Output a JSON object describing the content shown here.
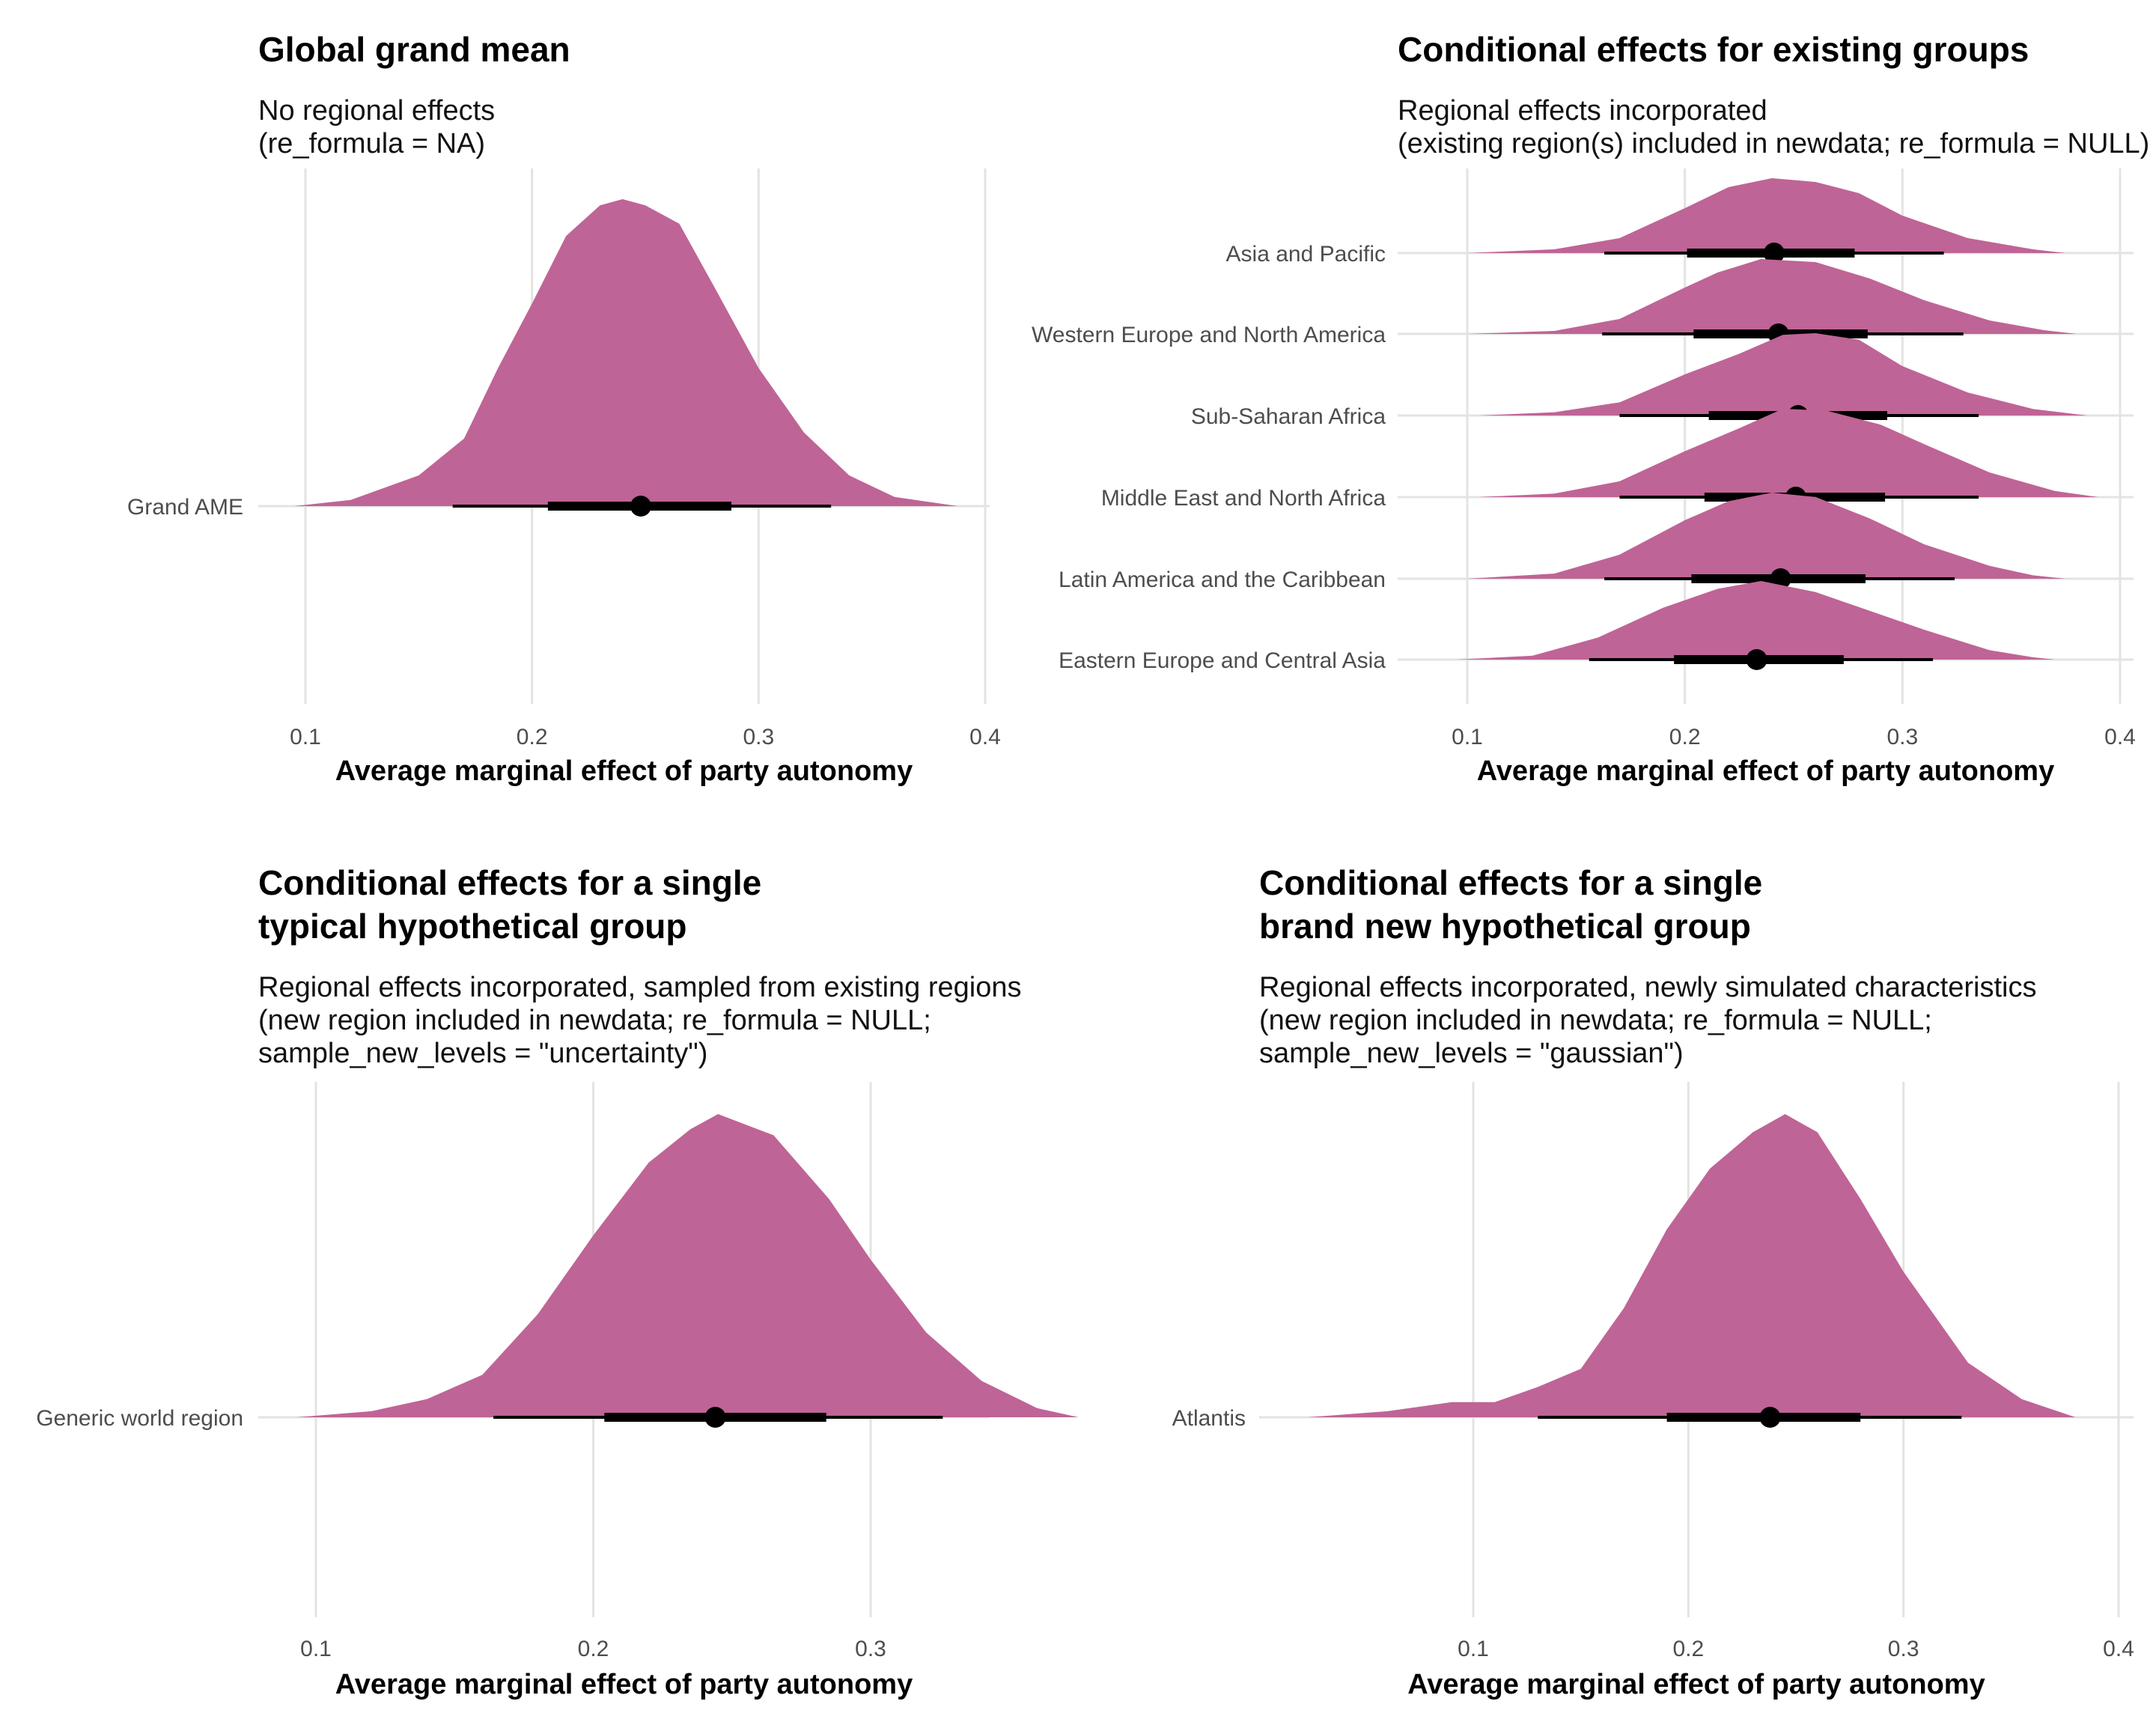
{
  "colors": {
    "density": "#bf6496",
    "grid": "#e3e3e3",
    "interval": "#000000"
  },
  "chart_data": [
    {
      "type": "halfeye",
      "title": [
        "Global grand mean"
      ],
      "subtitle": [
        "No regional effects",
        "(re_formula = NA)"
      ],
      "xlabel": "Average marginal effect of party autonomy",
      "xlim": [
        0.09,
        0.4
      ],
      "xticks": [
        0.1,
        0.2,
        0.3,
        0.4
      ],
      "xtick_labels": [
        "0.1",
        "0.2",
        "0.3",
        "0.4"
      ],
      "grid": true,
      "series": [
        {
          "label": "Grand AME",
          "median": 0.248,
          "interval_66": [
            0.207,
            0.288
          ],
          "interval_95": [
            0.165,
            0.332
          ],
          "density": [
            [
              0.095,
              0.0
            ],
            [
              0.12,
              0.02
            ],
            [
              0.15,
              0.1
            ],
            [
              0.17,
              0.22
            ],
            [
              0.185,
              0.45
            ],
            [
              0.2,
              0.66
            ],
            [
              0.215,
              0.88
            ],
            [
              0.23,
              0.98
            ],
            [
              0.24,
              1.0
            ],
            [
              0.25,
              0.98
            ],
            [
              0.265,
              0.92
            ],
            [
              0.28,
              0.72
            ],
            [
              0.3,
              0.45
            ],
            [
              0.32,
              0.24
            ],
            [
              0.34,
              0.1
            ],
            [
              0.36,
              0.03
            ],
            [
              0.388,
              0.0
            ]
          ]
        }
      ]
    },
    {
      "type": "halfeye",
      "title": [
        "Conditional effects for existing groups"
      ],
      "subtitle": [
        "Regional effects incorporated",
        "(existing region(s) included in newdata; re_formula = NULL)"
      ],
      "xlabel": "Average marginal effect of party autonomy",
      "xlim": [
        0.095,
        0.405
      ],
      "xticks": [
        0.1,
        0.2,
        0.3,
        0.4
      ],
      "xtick_labels": [
        "0.1",
        "0.2",
        "0.3",
        "0.4"
      ],
      "grid": true,
      "series": [
        {
          "label": "Asia and Pacific",
          "median": 0.241,
          "interval_66": [
            0.201,
            0.278
          ],
          "interval_95": [
            0.163,
            0.319
          ],
          "density": [
            [
              0.1,
              0.0
            ],
            [
              0.14,
              0.05
            ],
            [
              0.17,
              0.2
            ],
            [
              0.2,
              0.6
            ],
            [
              0.22,
              0.88
            ],
            [
              0.24,
              1.0
            ],
            [
              0.26,
              0.95
            ],
            [
              0.28,
              0.8
            ],
            [
              0.3,
              0.5
            ],
            [
              0.33,
              0.2
            ],
            [
              0.36,
              0.05
            ],
            [
              0.375,
              0.0
            ]
          ]
        },
        {
          "label": "Western Europe and North America",
          "median": 0.243,
          "interval_66": [
            0.204,
            0.284
          ],
          "interval_95": [
            0.162,
            0.328
          ],
          "density": [
            [
              0.1,
              0.0
            ],
            [
              0.14,
              0.04
            ],
            [
              0.17,
              0.2
            ],
            [
              0.2,
              0.62
            ],
            [
              0.215,
              0.82
            ],
            [
              0.235,
              1.0
            ],
            [
              0.26,
              0.96
            ],
            [
              0.285,
              0.74
            ],
            [
              0.31,
              0.45
            ],
            [
              0.34,
              0.18
            ],
            [
              0.365,
              0.05
            ],
            [
              0.38,
              0.0
            ]
          ]
        },
        {
          "label": "Sub-Saharan Africa",
          "median": 0.252,
          "interval_66": [
            0.211,
            0.293
          ],
          "interval_95": [
            0.17,
            0.335
          ],
          "density": [
            [
              0.105,
              0.0
            ],
            [
              0.14,
              0.04
            ],
            [
              0.17,
              0.16
            ],
            [
              0.2,
              0.5
            ],
            [
              0.225,
              0.75
            ],
            [
              0.245,
              0.98
            ],
            [
              0.26,
              1.0
            ],
            [
              0.28,
              0.92
            ],
            [
              0.3,
              0.6
            ],
            [
              0.33,
              0.28
            ],
            [
              0.36,
              0.08
            ],
            [
              0.385,
              0.0
            ]
          ]
        },
        {
          "label": "Middle East and North Africa",
          "median": 0.251,
          "interval_66": [
            0.209,
            0.292
          ],
          "interval_95": [
            0.17,
            0.335
          ],
          "density": [
            [
              0.105,
              0.0
            ],
            [
              0.14,
              0.04
            ],
            [
              0.17,
              0.18
            ],
            [
              0.2,
              0.52
            ],
            [
              0.225,
              0.78
            ],
            [
              0.245,
              1.0
            ],
            [
              0.265,
              0.98
            ],
            [
              0.29,
              0.82
            ],
            [
              0.31,
              0.6
            ],
            [
              0.34,
              0.28
            ],
            [
              0.37,
              0.07
            ],
            [
              0.39,
              0.0
            ]
          ]
        },
        {
          "label": "Latin America and the Caribbean",
          "median": 0.244,
          "interval_66": [
            0.203,
            0.283
          ],
          "interval_95": [
            0.163,
            0.324
          ],
          "density": [
            [
              0.1,
              0.0
            ],
            [
              0.14,
              0.06
            ],
            [
              0.17,
              0.28
            ],
            [
              0.2,
              0.68
            ],
            [
              0.22,
              0.9
            ],
            [
              0.24,
              1.0
            ],
            [
              0.26,
              0.95
            ],
            [
              0.285,
              0.7
            ],
            [
              0.31,
              0.4
            ],
            [
              0.34,
              0.15
            ],
            [
              0.36,
              0.04
            ],
            [
              0.375,
              0.0
            ]
          ]
        },
        {
          "label": "Eastern Europe and Central Asia",
          "median": 0.233,
          "interval_66": [
            0.195,
            0.273
          ],
          "interval_95": [
            0.156,
            0.314
          ],
          "density": [
            [
              0.095,
              0.0
            ],
            [
              0.13,
              0.05
            ],
            [
              0.16,
              0.28
            ],
            [
              0.19,
              0.66
            ],
            [
              0.215,
              0.9
            ],
            [
              0.235,
              1.0
            ],
            [
              0.26,
              0.86
            ],
            [
              0.285,
              0.62
            ],
            [
              0.31,
              0.38
            ],
            [
              0.34,
              0.12
            ],
            [
              0.36,
              0.03
            ],
            [
              0.37,
              0.0
            ]
          ]
        }
      ]
    },
    {
      "type": "halfeye",
      "title": [
        "Conditional effects for a single",
        "typical hypothetical group"
      ],
      "subtitle": [
        "Regional effects incorporated, sampled from existing regions",
        "(new region included in newdata; re_formula = NULL;",
        "sample_new_levels = \"uncertainty\")"
      ],
      "xlabel": "Average marginal effect of party autonomy",
      "xlim": [
        0.09,
        0.38
      ],
      "xticks": [
        0.1,
        0.2,
        0.3
      ],
      "xtick_labels": [
        "0.1",
        "0.2",
        "0.3"
      ],
      "grid": true,
      "series": [
        {
          "label": "Generic world region",
          "median": 0.244,
          "interval_66": [
            0.204,
            0.284
          ],
          "interval_95": [
            0.164,
            0.326
          ],
          "density": [
            [
              0.093,
              0.0
            ],
            [
              0.12,
              0.02
            ],
            [
              0.14,
              0.06
            ],
            [
              0.16,
              0.14
            ],
            [
              0.18,
              0.34
            ],
            [
              0.2,
              0.6
            ],
            [
              0.22,
              0.84
            ],
            [
              0.235,
              0.95
            ],
            [
              0.245,
              1.0
            ],
            [
              0.265,
              0.93
            ],
            [
              0.285,
              0.72
            ],
            [
              0.3,
              0.52
            ],
            [
              0.32,
              0.28
            ],
            [
              0.34,
              0.12
            ],
            [
              0.36,
              0.03
            ],
            [
              0.375,
              0.0
            ]
          ]
        }
      ]
    },
    {
      "type": "halfeye",
      "title": [
        "Conditional effects for a single",
        "brand new hypothetical group"
      ],
      "subtitle": [
        "Regional effects incorporated, newly simulated characteristics",
        "(new region included in newdata; re_formula = NULL;",
        "sample_new_levels = \"gaussian\")"
      ],
      "xlabel": "Average marginal effect of party autonomy",
      "xlim": [
        0.02,
        0.405
      ],
      "xticks": [
        0.1,
        0.2,
        0.3,
        0.4
      ],
      "xtick_labels": [
        "0.1",
        "0.2",
        "0.3",
        "0.4"
      ],
      "grid": true,
      "series": [
        {
          "label": "Atlantis",
          "median": 0.238,
          "interval_66": [
            0.19,
            0.28
          ],
          "interval_95": [
            0.13,
            0.327
          ],
          "density": [
            [
              0.023,
              0.0
            ],
            [
              0.06,
              0.02
            ],
            [
              0.09,
              0.05
            ],
            [
              0.11,
              0.05
            ],
            [
              0.13,
              0.1
            ],
            [
              0.15,
              0.16
            ],
            [
              0.17,
              0.36
            ],
            [
              0.19,
              0.62
            ],
            [
              0.21,
              0.82
            ],
            [
              0.23,
              0.94
            ],
            [
              0.245,
              1.0
            ],
            [
              0.26,
              0.94
            ],
            [
              0.28,
              0.72
            ],
            [
              0.3,
              0.48
            ],
            [
              0.33,
              0.18
            ],
            [
              0.355,
              0.06
            ],
            [
              0.38,
              0.0
            ]
          ]
        }
      ]
    }
  ]
}
